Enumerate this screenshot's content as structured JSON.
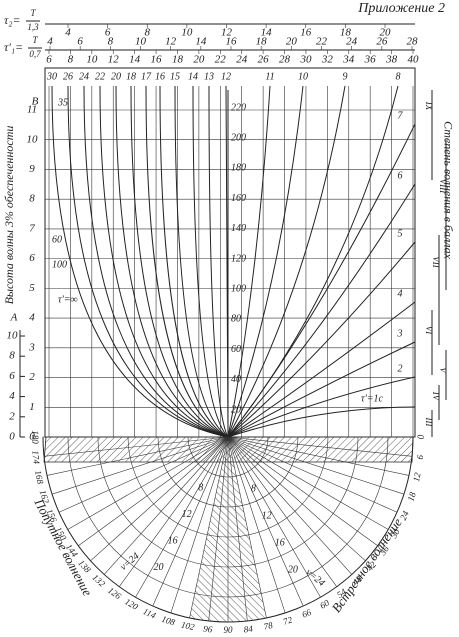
{
  "header": {
    "title": "Приложение 2"
  },
  "scales": {
    "tau2": {
      "label": "τ₂=",
      "num": "T",
      "den": "1,3",
      "ticks": [
        4,
        6,
        8,
        10,
        12,
        14,
        16,
        18,
        20
      ]
    },
    "tau1": {
      "label": "τ'₁=",
      "num": "T",
      "den": "0,7",
      "ticks": [
        4,
        6,
        8,
        10,
        12,
        14,
        16,
        18,
        20,
        22,
        24,
        26,
        28
      ]
    },
    "tau": {
      "ticks": [
        6,
        8,
        10,
        12,
        14,
        16,
        18,
        20,
        22,
        24,
        26,
        28,
        30,
        32,
        34,
        36,
        38,
        40
      ]
    }
  },
  "curve_labels": [
    30,
    26,
    24,
    22,
    20,
    18,
    17,
    16,
    15,
    14,
    13,
    12,
    11,
    10,
    9,
    8
  ],
  "right_curve_labels": [
    7,
    6,
    5,
    4,
    3,
    2,
    "τ'=1c"
  ],
  "left_inner_labels": [
    35,
    60,
    100,
    "τ'=∞"
  ],
  "left_axis": {
    "title": "Высота волны 3% обеспеченности",
    "name": "В",
    "ticks": [
      0,
      1,
      2,
      3,
      4,
      5,
      6,
      7,
      8,
      9,
      10,
      11
    ]
  },
  "a_axis": {
    "name": "A",
    "ticks": [
      0,
      2,
      4,
      6,
      8,
      10
    ]
  },
  "center_axis": {
    "ticks": [
      20,
      40,
      60,
      80,
      100,
      120,
      140,
      160,
      180,
      200,
      220
    ]
  },
  "right_axis": {
    "title": "Степень волнения в баллах",
    "grades": [
      "III",
      "IV",
      "V",
      "VI",
      "VII",
      "VIII",
      "IX"
    ]
  },
  "polar": {
    "left_title": "Попутное волнение",
    "right_title": "Встречное волнение",
    "left_angles": [
      180,
      174,
      168,
      162,
      156,
      150,
      144,
      138,
      132,
      126,
      120,
      114,
      108,
      102,
      96
    ],
    "right_angles": [
      0,
      6,
      12,
      18,
      24,
      30,
      36,
      42,
      48,
      54,
      60,
      66,
      72,
      78,
      84,
      90
    ],
    "ring_labels": [
      8,
      12,
      16,
      20
    ],
    "speed_labels": [
      "v=24",
      "v=24"
    ]
  }
}
